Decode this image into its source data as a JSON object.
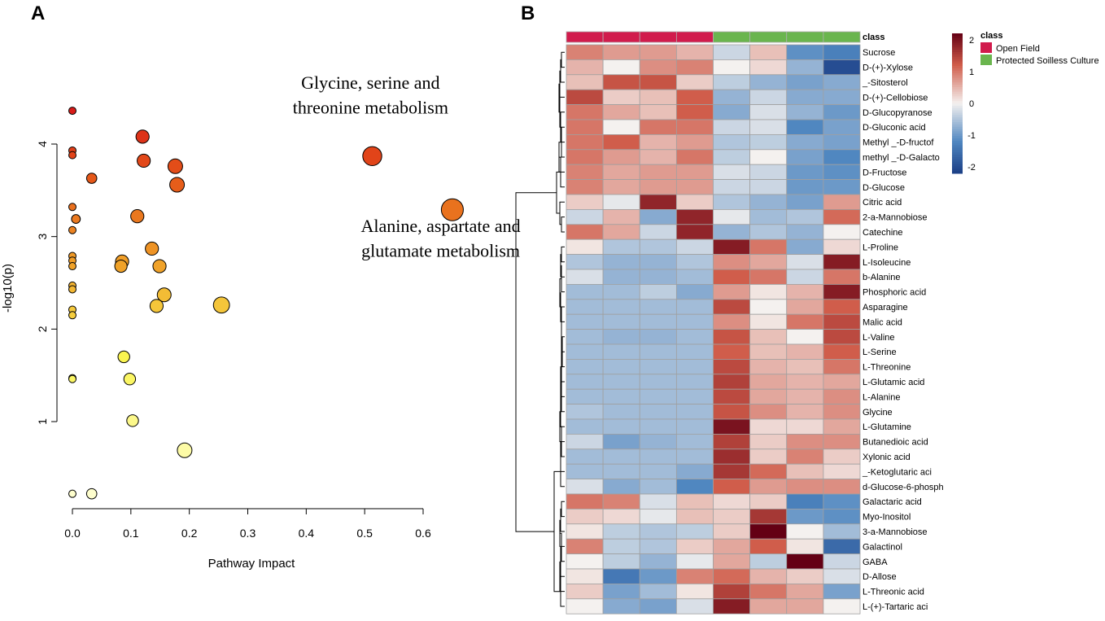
{
  "panel_labels": {
    "a": "A",
    "b": "B"
  },
  "chart_data": [
    {
      "type": "scatter",
      "panel": "A",
      "xlabel": "Pathway Impact",
      "ylabel": "-log10(p)",
      "xlim": [
        0,
        0.65
      ],
      "ylim": [
        0,
        4.5
      ],
      "xticks": [
        "0.0",
        "0.1",
        "0.2",
        "0.3",
        "0.4",
        "0.5",
        "0.6"
      ],
      "yticks": [
        "1",
        "2",
        "3",
        "4"
      ],
      "annotations": [
        {
          "text": "Glycine, serine and",
          "x": 0.51,
          "y": 4.6
        },
        {
          "text": "threonine metabolism",
          "x": 0.51,
          "y": 4.33
        },
        {
          "text": "Alanine, aspartate and",
          "x": 0.63,
          "y": 3.05
        },
        {
          "text": "glutamate metabolism",
          "x": 0.63,
          "y": 2.78
        }
      ],
      "points": [
        {
          "x": 0.0,
          "y": 4.36,
          "r": 1
        },
        {
          "x": 0.0,
          "y": 3.93,
          "r": 1
        },
        {
          "x": 0.0,
          "y": 3.88,
          "r": 1
        },
        {
          "x": 0.0,
          "y": 3.32,
          "r": 1
        },
        {
          "x": 0.0,
          "y": 3.07,
          "r": 1
        },
        {
          "x": 0.0,
          "y": 2.79,
          "r": 1
        },
        {
          "x": 0.0,
          "y": 2.74,
          "r": 1
        },
        {
          "x": 0.0,
          "y": 2.68,
          "r": 1
        },
        {
          "x": 0.0,
          "y": 2.47,
          "r": 1
        },
        {
          "x": 0.0,
          "y": 2.43,
          "r": 1
        },
        {
          "x": 0.0,
          "y": 2.21,
          "r": 1
        },
        {
          "x": 0.0,
          "y": 2.15,
          "r": 1
        },
        {
          "x": 0.0,
          "y": 1.47,
          "r": 1
        },
        {
          "x": 0.0,
          "y": 1.46,
          "r": 1
        },
        {
          "x": 0.0,
          "y": 0.22,
          "r": 1
        },
        {
          "x": 0.006,
          "y": 3.19,
          "r": 1.2
        },
        {
          "x": 0.033,
          "y": 3.63,
          "r": 1.4
        },
        {
          "x": 0.033,
          "y": 0.22,
          "r": 1.4
        },
        {
          "x": 0.12,
          "y": 4.08,
          "r": 1.8
        },
        {
          "x": 0.122,
          "y": 3.82,
          "r": 1.8
        },
        {
          "x": 0.176,
          "y": 3.76,
          "r": 2
        },
        {
          "x": 0.179,
          "y": 3.56,
          "r": 2
        },
        {
          "x": 0.111,
          "y": 3.22,
          "r": 1.8
        },
        {
          "x": 0.136,
          "y": 2.87,
          "r": 1.8
        },
        {
          "x": 0.085,
          "y": 2.73,
          "r": 1.8
        },
        {
          "x": 0.083,
          "y": 2.68,
          "r": 1.7
        },
        {
          "x": 0.149,
          "y": 2.68,
          "r": 1.8
        },
        {
          "x": 0.157,
          "y": 2.37,
          "r": 1.9
        },
        {
          "x": 0.144,
          "y": 2.25,
          "r": 1.8
        },
        {
          "x": 0.255,
          "y": 2.26,
          "r": 2.2
        },
        {
          "x": 0.088,
          "y": 1.7,
          "r": 1.6
        },
        {
          "x": 0.098,
          "y": 1.46,
          "r": 1.6
        },
        {
          "x": 0.103,
          "y": 1.01,
          "r": 1.6
        },
        {
          "x": 0.192,
          "y": 0.69,
          "r": 2
        },
        {
          "x": 0.513,
          "y": 3.87,
          "r": 2.6
        },
        {
          "x": 0.65,
          "y": 3.29,
          "r": 3
        }
      ]
    },
    {
      "type": "heatmap",
      "panel": "B",
      "annotation_label": "class",
      "legend_title": "class",
      "classes": [
        {
          "name": "Open Field",
          "color": "#d11b4c"
        },
        {
          "name": "Protected Soilless Culture",
          "color": "#6ab54e"
        }
      ],
      "column_classes": [
        0,
        0,
        0,
        0,
        1,
        1,
        1,
        1
      ],
      "colorbar_ticks": [
        "2",
        "1",
        "0",
        "-1",
        "-2"
      ],
      "colorbar_range": [
        -2.2,
        2.2
      ],
      "colors": {
        "low": "#1b3f86",
        "mid": "#f4f1ef",
        "high": "#640014"
      },
      "rows": [
        {
          "label": "Sucrose",
          "values": [
            0.9,
            0.7,
            0.7,
            0.5,
            -0.3,
            0.4,
            -1.1,
            -1.3
          ]
        },
        {
          "label": "D-(+)-Xylose",
          "values": [
            0.5,
            0.0,
            0.8,
            0.9,
            0.0,
            0.2,
            -0.7,
            -2.0
          ]
        },
        {
          "label": "_-Sitosterol",
          "values": [
            0.4,
            1.3,
            1.3,
            0.3,
            -0.4,
            -0.7,
            -0.9,
            -0.8
          ]
        },
        {
          "label": "D-(+)-Cellobiose",
          "values": [
            1.4,
            0.3,
            0.4,
            1.2,
            -0.7,
            -0.3,
            -0.8,
            -0.8
          ]
        },
        {
          "label": "D-Glucopyranose",
          "values": [
            1.0,
            0.6,
            0.4,
            1.2,
            -0.8,
            -0.2,
            -0.7,
            -1.0
          ]
        },
        {
          "label": "D-Gluconic acid",
          "values": [
            1.0,
            0.0,
            1.0,
            1.0,
            -0.3,
            -0.2,
            -1.2,
            -0.9
          ]
        },
        {
          "label": "Methyl _-D-fructof",
          "values": [
            1.0,
            1.2,
            0.5,
            0.7,
            -0.5,
            -0.4,
            -0.8,
            -0.9
          ]
        },
        {
          "label": "methyl _-D-Galacto",
          "values": [
            1.0,
            0.7,
            0.5,
            1.0,
            -0.4,
            0.0,
            -0.9,
            -1.2
          ]
        },
        {
          "label": "D-Fructose",
          "values": [
            0.9,
            0.6,
            0.7,
            0.7,
            -0.2,
            -0.3,
            -1.0,
            -1.1
          ]
        },
        {
          "label": "D-Glucose",
          "values": [
            0.9,
            0.6,
            0.7,
            0.7,
            -0.3,
            -0.3,
            -1.0,
            -1.0
          ]
        },
        {
          "label": "Citric acid",
          "values": [
            0.3,
            -0.1,
            1.8,
            0.3,
            -0.5,
            -0.7,
            -0.9,
            0.7
          ]
        },
        {
          "label": "2-a-Mannobiose",
          "values": [
            -0.3,
            0.5,
            -0.8,
            1.8,
            -0.1,
            -0.6,
            -0.5,
            1.1
          ]
        },
        {
          "label": "Catechine",
          "values": [
            1.0,
            0.6,
            -0.3,
            1.8,
            -0.7,
            -0.5,
            -0.7,
            0.0
          ]
        },
        {
          "label": "L-Proline",
          "values": [
            0.1,
            -0.5,
            -0.5,
            -0.3,
            1.9,
            1.0,
            -0.8,
            0.2
          ]
        },
        {
          "label": "L-Isoleucine",
          "values": [
            -0.5,
            -0.7,
            -0.7,
            -0.5,
            0.8,
            0.6,
            -0.2,
            1.9
          ]
        },
        {
          "label": "b-Alanine",
          "values": [
            -0.2,
            -0.7,
            -0.7,
            -0.6,
            1.2,
            1.0,
            -0.3,
            1.0
          ]
        },
        {
          "label": "Phosphoric acid",
          "values": [
            -0.6,
            -0.6,
            -0.4,
            -0.8,
            0.7,
            0.1,
            0.5,
            1.9
          ]
        },
        {
          "label": "Asparagine",
          "values": [
            -0.6,
            -0.6,
            -0.6,
            -0.6,
            1.4,
            0.0,
            0.6,
            1.2
          ]
        },
        {
          "label": "Malic acid",
          "values": [
            -0.6,
            -0.6,
            -0.6,
            -0.6,
            0.8,
            0.1,
            1.0,
            1.4
          ]
        },
        {
          "label": "L-Valine",
          "values": [
            -0.6,
            -0.7,
            -0.7,
            -0.6,
            1.3,
            0.4,
            0.0,
            1.4
          ]
        },
        {
          "label": "L-Serine",
          "values": [
            -0.6,
            -0.6,
            -0.6,
            -0.6,
            1.2,
            0.4,
            0.5,
            1.2
          ]
        },
        {
          "label": "L-Threonine",
          "values": [
            -0.6,
            -0.6,
            -0.6,
            -0.6,
            1.4,
            0.5,
            0.4,
            1.0
          ]
        },
        {
          "label": "L-Glutamic acid",
          "values": [
            -0.6,
            -0.6,
            -0.6,
            -0.6,
            1.5,
            0.6,
            0.5,
            0.6
          ]
        },
        {
          "label": "L-Alanine",
          "values": [
            -0.6,
            -0.6,
            -0.6,
            -0.6,
            1.4,
            0.6,
            0.5,
            0.8
          ]
        },
        {
          "label": "Glycine",
          "values": [
            -0.5,
            -0.6,
            -0.6,
            -0.6,
            1.3,
            0.8,
            0.5,
            0.8
          ]
        },
        {
          "label": "L-Glutamine",
          "values": [
            -0.6,
            -0.6,
            -0.6,
            -0.6,
            2.0,
            0.2,
            0.2,
            0.6
          ]
        },
        {
          "label": "Butanedioic acid",
          "values": [
            -0.3,
            -0.9,
            -0.7,
            -0.6,
            1.5,
            0.3,
            0.8,
            0.8
          ]
        },
        {
          "label": "Xylonic acid",
          "values": [
            -0.6,
            -0.6,
            -0.6,
            -0.6,
            1.7,
            0.3,
            0.9,
            0.3
          ]
        },
        {
          "label": "_-Ketoglutaric aci",
          "values": [
            -0.6,
            -0.6,
            -0.6,
            -0.8,
            1.6,
            1.1,
            0.4,
            0.2
          ]
        },
        {
          "label": "d-Glucose-6-phosph",
          "values": [
            -0.2,
            -0.8,
            -0.6,
            -1.2,
            1.2,
            0.7,
            0.8,
            0.8
          ]
        },
        {
          "label": "Galactaric acid",
          "values": [
            1.0,
            0.9,
            -0.2,
            0.4,
            0.2,
            0.3,
            -1.3,
            -1.1
          ]
        },
        {
          "label": "Myo-Inositol",
          "values": [
            0.3,
            0.2,
            -0.1,
            0.4,
            0.3,
            1.6,
            -1.0,
            -1.1
          ]
        },
        {
          "label": "3-a-Mannobiose",
          "values": [
            0.1,
            -0.4,
            -0.5,
            -0.4,
            0.3,
            2.4,
            0.0,
            -0.6
          ]
        },
        {
          "label": "Galactinol",
          "values": [
            0.9,
            -0.4,
            -0.5,
            0.3,
            0.6,
            1.2,
            0.1,
            -1.6
          ]
        },
        {
          "label": "GABA",
          "values": [
            0.0,
            -0.4,
            -0.7,
            -0.1,
            0.6,
            -0.4,
            2.5,
            -0.3
          ]
        },
        {
          "label": "D-Allose",
          "values": [
            0.1,
            -1.4,
            -1.0,
            0.9,
            1.1,
            0.5,
            0.3,
            -0.2
          ]
        },
        {
          "label": "L-Threonic acid",
          "values": [
            0.3,
            -0.9,
            -0.6,
            0.1,
            1.5,
            1.0,
            0.6,
            -0.9
          ]
        },
        {
          "label": "L-(+)-Tartaric aci",
          "values": [
            0.0,
            -0.8,
            -0.9,
            -0.2,
            1.9,
            0.6,
            0.6,
            0.0
          ]
        }
      ]
    }
  ]
}
